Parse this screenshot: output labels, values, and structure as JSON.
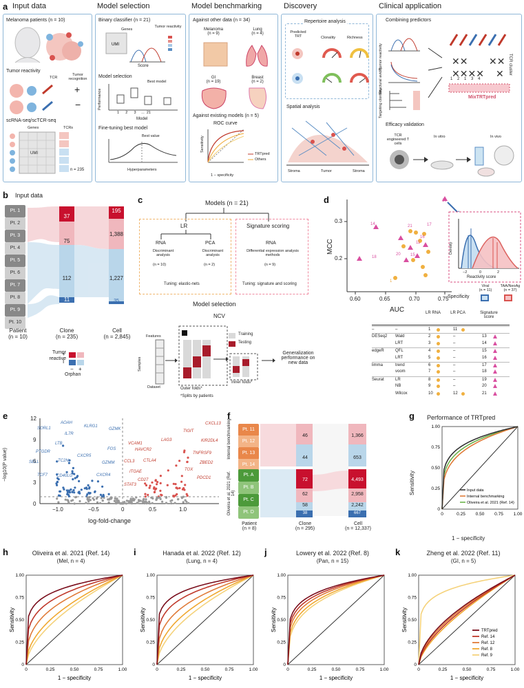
{
  "panel_a": {
    "label": "a",
    "sections": [
      {
        "title": "Input data",
        "items": [
          "Melanoma patients (n = 10)",
          "Tumor reactivity",
          "scRNA-seq/scTCR-seq"
        ]
      },
      {
        "title": "Model selection",
        "items": [
          "Binary classifier (n = 21)",
          "Model selection",
          "Fine-tuning best model"
        ]
      },
      {
        "title": "Model benchmarking",
        "items": [
          "Against other data (n = 34)",
          "Against existing models (n = 5)"
        ]
      },
      {
        "title": "Discovery",
        "items": [
          "Repertoire analysis",
          "Spatial analysis"
        ]
      },
      {
        "title": "Clinical application",
        "items": [
          "Combining predictors",
          "Efficacy validation"
        ]
      }
    ],
    "labels": {
      "tcr": "TCR",
      "tumor_recognition": "Tumor recognition",
      "plus": "+",
      "minus": "−",
      "genes": "Genes",
      "tcrs": "TCRs",
      "umi": "UMI",
      "n235": "n = 235",
      "cells": "Cells",
      "tumor_reactivity": "Tumor reactivity",
      "score": "Score",
      "performance": "Performance",
      "model": "Model",
      "best_model": "Best model",
      "model_ticks": [
        "1",
        "2",
        "3",
        "...",
        "21"
      ],
      "best_value": "Best value",
      "hyperparameters": "Hyperparameters",
      "melanoma": "Melanoma",
      "melanoma_n": "(n = 9)",
      "lung": "Lung",
      "lung_n": "(n = 4)",
      "gi": "GI",
      "gi_n": "(n = 19)",
      "breast": "Breast",
      "breast_n": "(n = 2)",
      "roc_curve": "ROC curve",
      "sensitivity": "Sensitivity",
      "one_minus_spec": "1 − specificity",
      "trtpred": "TRTpred",
      "others": "Others",
      "predicted_trt": "Predicted TRT",
      "clonality": "Clonality",
      "richness": "Richness",
      "stroma": "Stroma",
      "tumor": "Tumor",
      "tumor_reactivity_c": "Tumor reactivity",
      "structural_avidity": "Structural avidity",
      "targeting_clonality": "Targeting clonality",
      "tcr_cluster": "TCR cluster",
      "mixtrtpred": "MixTRTpred",
      "grid_nums": [
        "1",
        "2",
        "1",
        "3",
        "4"
      ],
      "tcr_engineered": "TCR engineered T cells",
      "in_vitro": "In vitro",
      "in_vivo": "In vivo"
    }
  },
  "panel_b": {
    "label": "b",
    "title": "Input data",
    "patients": [
      "Pt. 1",
      "Pt. 2",
      "Pt. 3",
      "Pt. 4",
      "Pt. 5",
      "Pt. 6",
      "Pt. 7",
      "Pt. 8",
      "Pt. 9",
      "Pt. 10"
    ],
    "clone_values": [
      "37",
      "75",
      "112",
      "11"
    ],
    "cell_values": [
      "195",
      "1,388",
      "1,227",
      "35"
    ],
    "xlabels": [
      {
        "name": "Patient",
        "n": "(n = 10)"
      },
      {
        "name": "Clone",
        "n": "(n = 235)"
      },
      {
        "name": "Cell",
        "n": "(n = 2,845)"
      }
    ],
    "legend": {
      "tumor_reactive": "Tumor reactive",
      "orphan": "Orphan",
      "plus": "+",
      "minus": "−",
      "i": "I"
    }
  },
  "panel_c": {
    "label": "c",
    "title": "Models (n = 21)",
    "lr": "LR",
    "rna": "RNA",
    "pca": "PCA",
    "discriminant": "Discriminant analysis",
    "lr_rna_n": "(n = 10)",
    "lr_pca_n": "(n = 2)",
    "tuning_lr": "Tuning: elastic-nets",
    "sig": "Signature scoring",
    "sig_rna": "RNA",
    "sig_desc": "Differential expression analysis methods",
    "sig_n": "(n = 9)",
    "tuning_sig": "Tuning: signature and scoring",
    "model_selection": "Model selection",
    "ncv": "NCV",
    "features": "Features",
    "samples": "Samples",
    "dataset": "Dataset",
    "training": "Training",
    "testing": "Testing",
    "outer": "Outer folds*",
    "inner": "Inner folds*",
    "splits": "*Splits by patients",
    "gen_perf": "Generalization performance on new data"
  },
  "panel_d": {
    "label": "d",
    "ylabel": "MCC",
    "xlabel": "AUC",
    "xticks": [
      "0.60",
      "0.65",
      "0.70",
      "0.75"
    ],
    "yticks": [
      "0.3",
      "0.2"
    ],
    "inset": {
      "ylabel": "Density",
      "xlabel": "Reactivity score",
      "xticks": [
        "−2",
        "0",
        "2"
      ],
      "viral": "Viral",
      "viral_n": "(n = 11)",
      "taa": "TAA/NeoAg",
      "taa_n": "(n = 37)",
      "specificity": "Specificity"
    },
    "table": {
      "headers": [
        "LR RNA",
        "LR PCA",
        "Signature score"
      ],
      "rows": [
        {
          "group": "–",
          "method": "–",
          "rna": "1",
          "pca": "11",
          "sig": ""
        },
        {
          "group": "DESeq2",
          "method": "Wald",
          "rna": "2",
          "pca": "–",
          "sig": "13"
        },
        {
          "group": "",
          "method": "LRT",
          "rna": "3",
          "pca": "–",
          "sig": "14"
        },
        {
          "group": "edgeR",
          "method": "QFL",
          "rna": "4",
          "pca": "–",
          "sig": "15"
        },
        {
          "group": "",
          "method": "LRT",
          "rna": "5",
          "pca": "–",
          "sig": "16"
        },
        {
          "group": "limma",
          "method": "trend",
          "rna": "6",
          "pca": "–",
          "sig": "17"
        },
        {
          "group": "",
          "method": "voom",
          "rna": "7",
          "pca": "–",
          "sig": "18"
        },
        {
          "group": "Seurat",
          "method": "LR",
          "rna": "8",
          "pca": "–",
          "sig": "19"
        },
        {
          "group": "",
          "method": "NB",
          "rna": "9",
          "pca": "–",
          "sig": "20"
        },
        {
          "group": "",
          "method": "Wilcox",
          "rna": "10",
          "pca": "12",
          "sig": "21"
        }
      ]
    },
    "point_labels": [
      "10",
      "14",
      "21",
      "16",
      "11",
      "17",
      "20",
      "15",
      "18",
      "1"
    ]
  },
  "panel_e": {
    "label": "e",
    "ylabel": "−log10(P value)",
    "xlabel": "log-fold-change",
    "xticks": [
      "−1.0",
      "−0.5",
      "0",
      "0.5",
      "1.0"
    ],
    "yticks": [
      "12",
      "9",
      "6",
      "3",
      "0"
    ],
    "blue_genes": [
      "SORL1",
      "AOAH",
      "IL7R",
      "KLRG1",
      "GZMK",
      "LTB",
      "PTGDR",
      "TCF7",
      "SELL",
      "CXCR5",
      "FOS",
      "GZMM",
      "TC2N",
      "CD40LG",
      "CXCR4"
    ],
    "red_genes": [
      "CXCL13",
      "TIGIT",
      "KIR2DL4",
      "VCAM1",
      "LAG3",
      "HAVCR2",
      "TNFRSF9",
      "CTLA4",
      "CCL3",
      "ZBED2",
      "ITGAE",
      "TOX",
      "CD27",
      "PDCD1",
      "STAT3"
    ]
  },
  "panel_f": {
    "label": "f",
    "group1": "Internal benchmarking",
    "group2": "Oliveira et al. 2021 (Ref. 14)",
    "patients": [
      "Pt. 11",
      "Pt. 12",
      "Pt. 13",
      "Pt. 14",
      "Pt. A",
      "Pt. B",
      "Pt. C",
      "Pt. D"
    ],
    "clone_values": [
      "46",
      "44",
      "72",
      "62",
      "58",
      "38"
    ],
    "cell_values": [
      "1,366",
      "653",
      "4,493",
      "2,958",
      "2,242",
      "667"
    ],
    "xlabels": [
      {
        "name": "Patient",
        "n": "(n = 8)"
      },
      {
        "name": "Clone",
        "n": "(n = 295)"
      },
      {
        "name": "Cell",
        "n": "(n = 12,337)"
      }
    ]
  },
  "panel_g": {
    "label": "g",
    "title": "Performance of TRTpred",
    "ylabel": "Sensitivity",
    "xlabel": "1 − specificity",
    "ticks": [
      "0",
      "0.25",
      "0.50",
      "0.75",
      "1.00"
    ],
    "legend": [
      "Input data",
      "Internal benchmarking",
      "Oliveira et al. 2021 (Ref. 14)"
    ],
    "colors": [
      "#333333",
      "#e07b39",
      "#6bb24a"
    ]
  },
  "roc_panels": [
    {
      "label": "h",
      "title": "Oliveira et al. 2021 (Ref. 14)",
      "subtitle": "(Mel, n = 4)"
    },
    {
      "label": "i",
      "title": "Hanada et al. 2022 (Ref. 12)",
      "subtitle": "(Lung, n = 4)"
    },
    {
      "label": "j",
      "title": "Lowery et al. 2022 (Ref. 8)",
      "subtitle": "(Pan, n = 15)"
    },
    {
      "label": "k",
      "title": "Zheng et al. 2022 (Ref. 11)",
      "subtitle": "(GI, n = 5)"
    }
  ],
  "roc_common": {
    "ylabel": "Sensitivity",
    "xlabel": "1 − specificity",
    "ticks": [
      "0",
      "0.25",
      "0.50",
      "0.75",
      "1.00"
    ],
    "legend_k": [
      "TRTpred",
      "Ref. 14",
      "Ref. 12",
      "Ref. 8",
      "Ref. 9"
    ],
    "colors": [
      "#7a0e1c",
      "#c0392b",
      "#e07b39",
      "#f0a830",
      "#f5d27a"
    ]
  }
}
